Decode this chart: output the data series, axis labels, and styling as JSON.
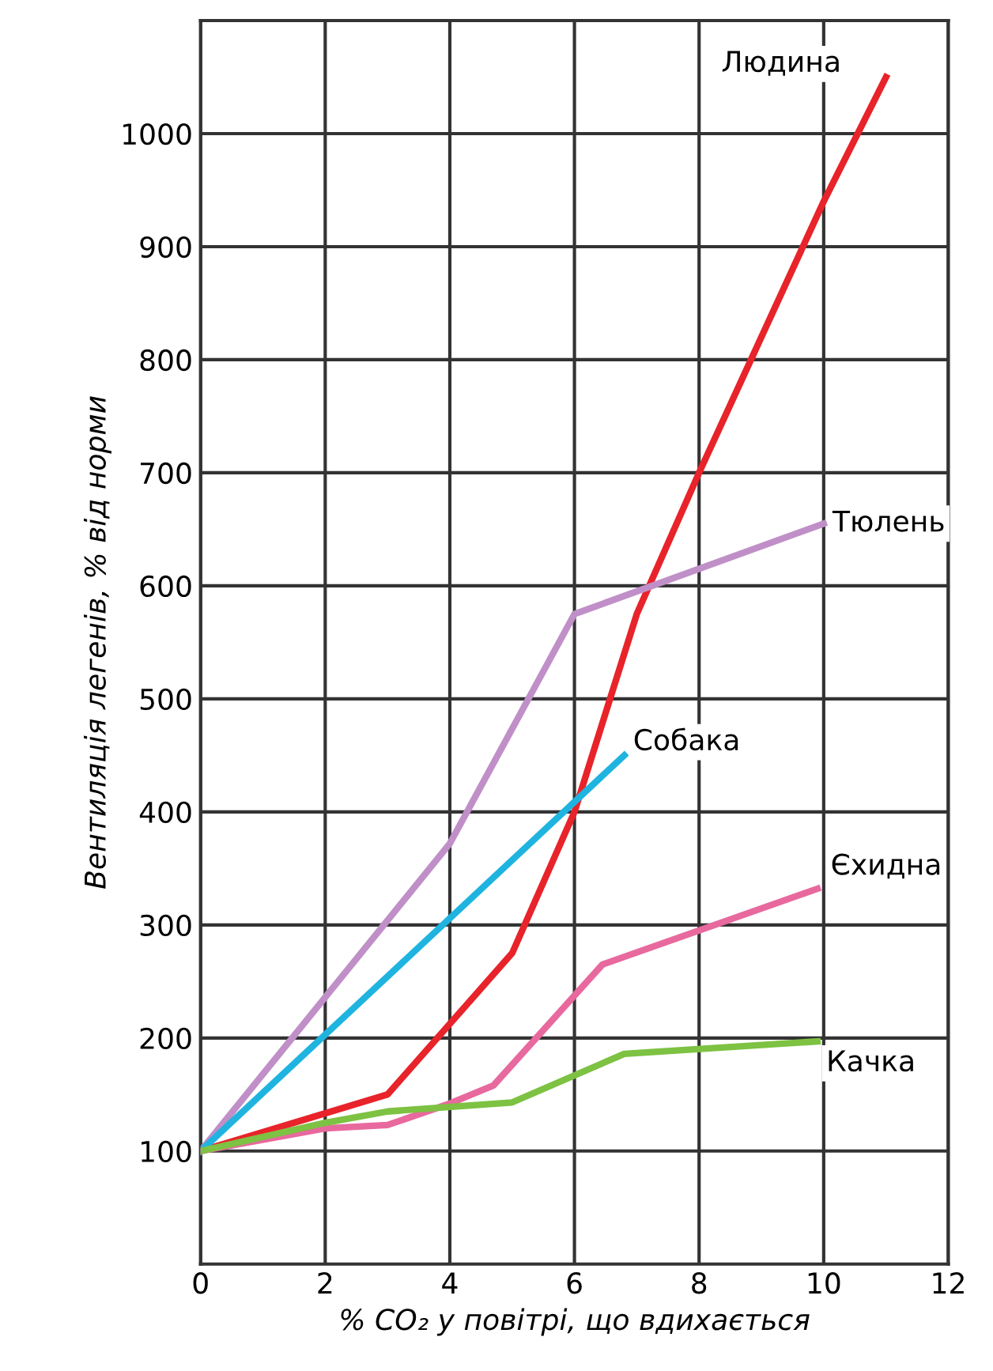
{
  "chart_data": {
    "type": "line",
    "xlabel": "% CO₂ у повітрі, що вдихається",
    "ylabel": "Вентиляція легенів, % від норми",
    "xlim": [
      0,
      12
    ],
    "xticks": [
      0,
      2,
      4,
      6,
      8,
      10,
      12
    ],
    "ylim": [
      0,
      1100
    ],
    "yticks": [
      100,
      200,
      300,
      400,
      500,
      600,
      700,
      800,
      900,
      1000
    ],
    "grid": true,
    "legend": false,
    "marker": "none",
    "line_style": "solid",
    "series": [
      {
        "name": "Людина",
        "color": "#e8232a",
        "x": [
          0,
          3,
          5,
          6,
          7,
          8,
          9,
          10,
          11
        ],
        "values": [
          100,
          150,
          275,
          400,
          575,
          700,
          820,
          940,
          1050
        ]
      },
      {
        "name": "Тюлень",
        "color": "#c08fc8",
        "x": [
          0,
          4,
          6,
          10
        ],
        "values": [
          100,
          372,
          575,
          655
        ]
      },
      {
        "name": "Собака",
        "color": "#1fb4e0",
        "x": [
          0,
          6.8
        ],
        "values": [
          100,
          450
        ]
      },
      {
        "name": "Єхидна",
        "color": "#e8699e",
        "x": [
          0,
          2,
          3,
          4,
          4.7,
          6.45,
          9.9
        ],
        "values": [
          100,
          120,
          123,
          142,
          158,
          265,
          332
        ]
      },
      {
        "name": "Качка",
        "color": "#7dc242",
        "x": [
          0,
          2,
          3,
          5,
          6.8,
          9.9
        ],
        "values": [
          100,
          125,
          135,
          143,
          186,
          197
        ]
      }
    ]
  }
}
